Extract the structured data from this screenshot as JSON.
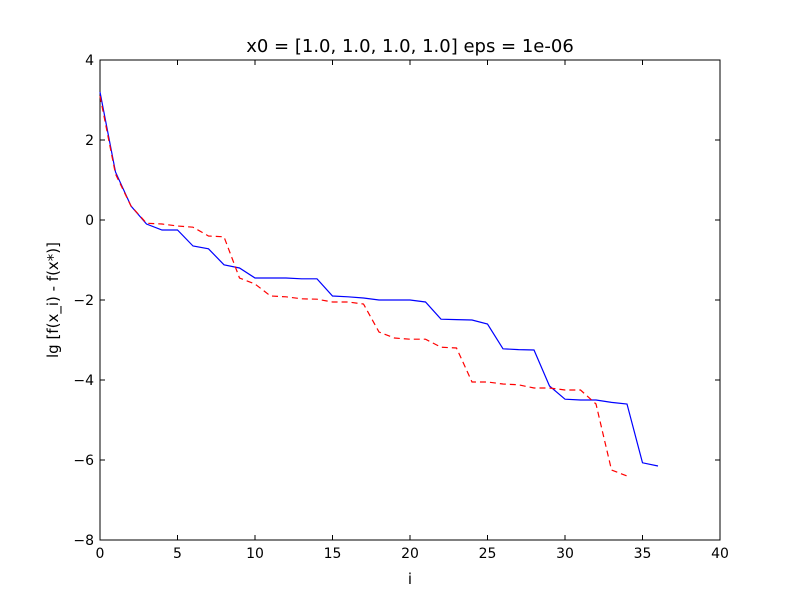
{
  "chart_data": {
    "type": "line",
    "title": "x0 = [1.0, 1.0, 1.0, 1.0]  eps = 1e-06",
    "xlabel": "i",
    "ylabel": "lg [f(x_i) - f(x*)]",
    "xlim": [
      0,
      40
    ],
    "ylim": [
      -8,
      4
    ],
    "xticks": [
      0,
      5,
      10,
      15,
      20,
      25,
      30,
      35,
      40
    ],
    "yticks": [
      -8,
      -6,
      -4,
      -2,
      0,
      2,
      4
    ],
    "xtick_labels": [
      "0",
      "5",
      "10",
      "15",
      "20",
      "25",
      "30",
      "35",
      "40"
    ],
    "ytick_labels": [
      "−8",
      "−6",
      "−4",
      "−2",
      "0",
      "2",
      "4"
    ],
    "grid": false,
    "series": [
      {
        "color": "#0000ff",
        "linestyle": "solid",
        "x": [
          0,
          1,
          2,
          3,
          4,
          5,
          6,
          7,
          8,
          9,
          10,
          11,
          12,
          13,
          14,
          15,
          16,
          17,
          18,
          19,
          20,
          21,
          22,
          23,
          24,
          25,
          26,
          27,
          28,
          29,
          30,
          31,
          32,
          33,
          34,
          35,
          36
        ],
        "y": [
          3.2,
          1.2,
          0.35,
          -0.1,
          -0.25,
          -0.25,
          -0.65,
          -0.72,
          -1.12,
          -1.2,
          -1.45,
          -1.45,
          -1.45,
          -1.47,
          -1.47,
          -1.9,
          -1.92,
          -1.95,
          -2.0,
          -2.0,
          -2.0,
          -2.05,
          -2.48,
          -2.49,
          -2.5,
          -2.6,
          -3.22,
          -3.24,
          -3.25,
          -4.15,
          -4.48,
          -4.5,
          -4.5,
          -4.56,
          -4.6,
          -6.07,
          -6.15
        ]
      },
      {
        "color": "#ff0000",
        "linestyle": "dashed",
        "x": [
          0,
          1,
          2,
          3,
          4,
          5,
          6,
          7,
          8,
          9,
          10,
          11,
          12,
          13,
          14,
          15,
          16,
          17,
          18,
          19,
          20,
          21,
          22,
          23,
          24,
          25,
          26,
          27,
          28,
          29,
          30,
          31,
          32,
          33,
          34
        ],
        "y": [
          3.1,
          1.15,
          0.35,
          -0.08,
          -0.1,
          -0.15,
          -0.18,
          -0.4,
          -0.42,
          -1.45,
          -1.6,
          -1.9,
          -1.92,
          -1.97,
          -1.98,
          -2.05,
          -2.05,
          -2.1,
          -2.8,
          -2.95,
          -2.98,
          -2.98,
          -3.18,
          -3.2,
          -4.05,
          -4.05,
          -4.1,
          -4.12,
          -4.2,
          -4.2,
          -4.25,
          -4.25,
          -4.6,
          -6.25,
          -6.4
        ]
      }
    ]
  }
}
